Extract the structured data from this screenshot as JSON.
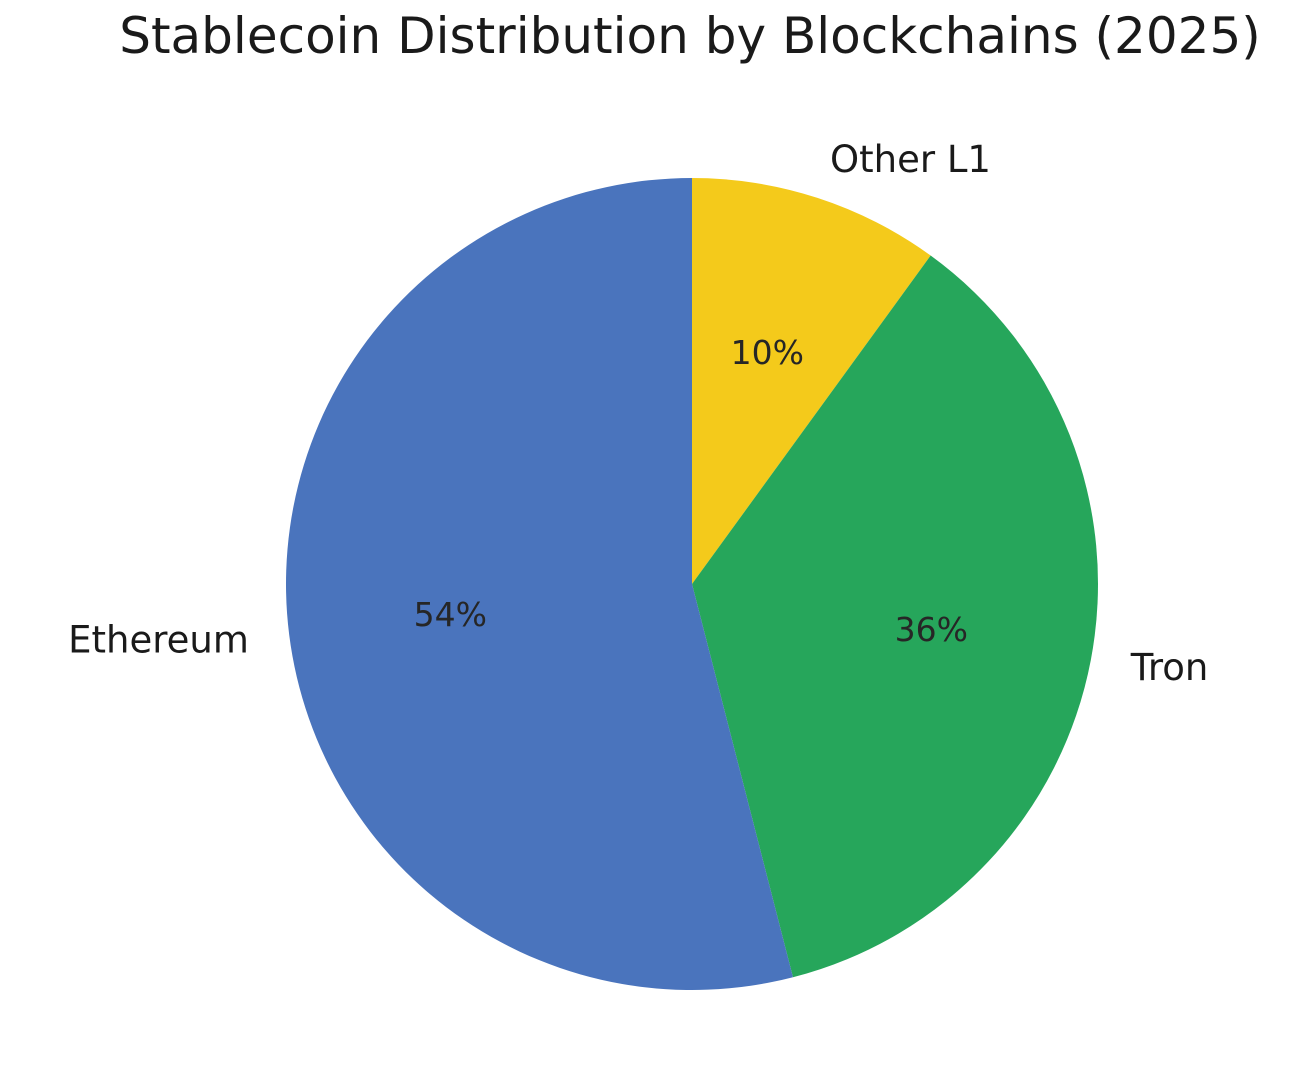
{
  "chart_data": {
    "type": "pie",
    "title": "Stablecoin Distribution by Blockchains (2025)",
    "start_angle_deg": 90,
    "direction": "clockwise",
    "slices": [
      {
        "label": "Other L1",
        "value": 10,
        "pct_label": "10%",
        "color": "#F4CA1B"
      },
      {
        "label": "Tron",
        "value": 36,
        "pct_label": "36%",
        "color": "#26A65B"
      },
      {
        "label": "Ethereum",
        "value": 54,
        "pct_label": "54%",
        "color": "#4A74BD"
      }
    ]
  }
}
